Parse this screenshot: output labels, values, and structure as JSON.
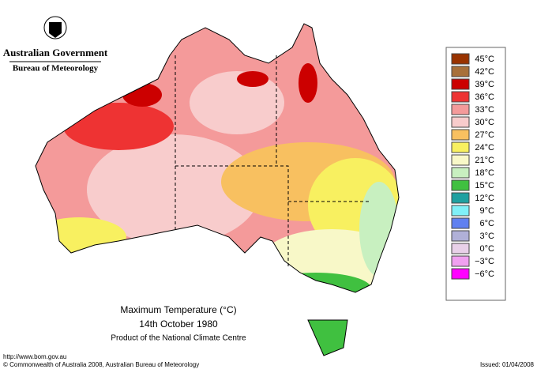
{
  "header": {
    "government": "Australian Government",
    "bureau": "Bureau of Meteorology"
  },
  "map": {
    "title": "Maximum Temperature (°C)",
    "date": "14th October 1980",
    "product": "Product of the National Climate Centre"
  },
  "legend": {
    "items": [
      {
        "label": "45°C",
        "color": "#993300"
      },
      {
        "label": "42°C",
        "color": "#a8703a"
      },
      {
        "label": "39°C",
        "color": "#cc0000"
      },
      {
        "label": "36°C",
        "color": "#ee3333"
      },
      {
        "label": "33°C",
        "color": "#f49a9a"
      },
      {
        "label": "30°C",
        "color": "#f8cccc"
      },
      {
        "label": "27°C",
        "color": "#f8c060"
      },
      {
        "label": "24°C",
        "color": "#f8f060"
      },
      {
        "label": "21°C",
        "color": "#f8f8c8"
      },
      {
        "label": "18°C",
        "color": "#c8f0c0"
      },
      {
        "label": "15°C",
        "color": "#40c040"
      },
      {
        "label": "12°C",
        "color": "#20a0a0"
      },
      {
        "label": "9°C",
        "color": "#80f0f8"
      },
      {
        "label": "6°C",
        "color": "#6080f0"
      },
      {
        "label": "3°C",
        "color": "#b0b0d8"
      },
      {
        "label": "0°C",
        "color": "#e8d0e8"
      },
      {
        "label": "−3°C",
        "color": "#f0a0f0"
      },
      {
        "label": "−6°C",
        "color": "#ff00ff"
      }
    ]
  },
  "footer": {
    "url": "http://www.bom.gov.au",
    "copyright": "© Commonwealth of Australia 2008, Australian Bureau of Meteorology",
    "issued": "Issued: 01/04/2008"
  }
}
